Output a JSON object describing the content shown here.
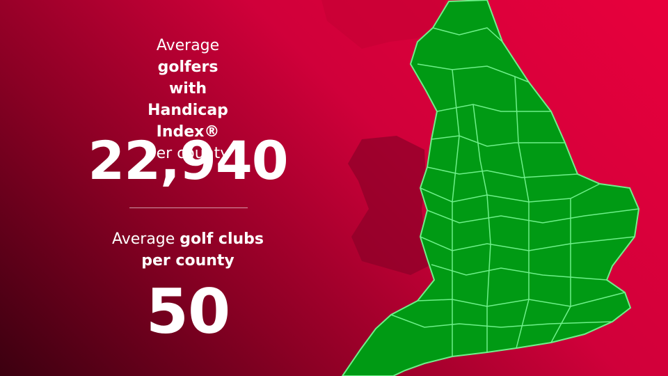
{
  "stats": [
    {
      "label": {
        "lead": "Average ",
        "bold": "golfers with Handicap Index®",
        "tail": "per county"
      },
      "value": "22,940"
    },
    {
      "label": {
        "lead": "Average ",
        "bold": "golf clubs per county"
      },
      "value": "50"
    }
  ]
}
